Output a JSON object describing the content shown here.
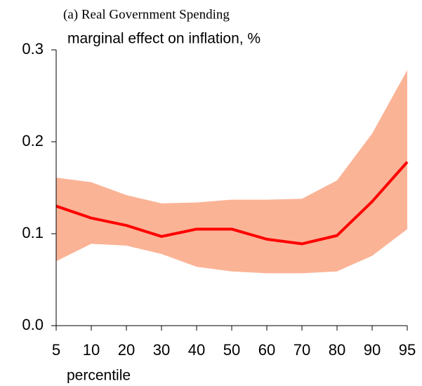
{
  "chart_data": {
    "type": "line",
    "title": "(a) Real Government Spending",
    "y_label": "marginal effect on inflation, %",
    "x_label": "percentile",
    "categories": [
      "5",
      "10",
      "20",
      "30",
      "40",
      "50",
      "60",
      "70",
      "80",
      "90",
      "95"
    ],
    "series": [
      {
        "color": "#ff0000",
        "values": [
          0.13,
          0.117,
          0.109,
          0.097,
          0.105,
          0.105,
          0.094,
          0.089,
          0.098,
          0.135,
          0.178
        ]
      }
    ],
    "band": {
      "color": "#fbb396",
      "upper": [
        0.161,
        0.156,
        0.142,
        0.133,
        0.134,
        0.137,
        0.137,
        0.138,
        0.158,
        0.209,
        0.278
      ],
      "lower": [
        0.07,
        0.089,
        0.087,
        0.078,
        0.064,
        0.059,
        0.057,
        0.057,
        0.059,
        0.076,
        0.105
      ]
    },
    "ylim": [
      0,
      0.3
    ],
    "yticks": [
      {
        "value": 0,
        "label": "0.0"
      },
      0.1,
      0.2,
      0.3
    ]
  }
}
